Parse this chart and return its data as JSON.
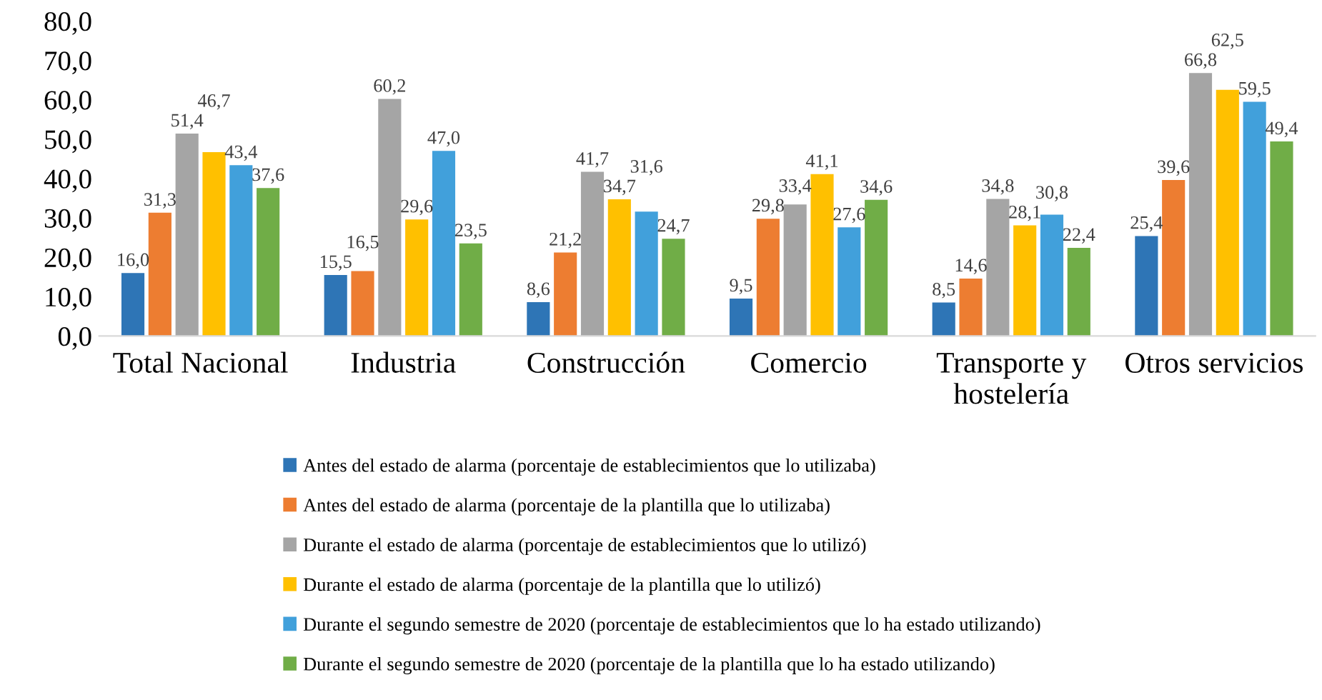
{
  "chart_data": {
    "type": "bar",
    "categories": [
      "Total Nacional",
      "Industria",
      "Construcción",
      "Comercio",
      "Transporte y\nhostelería",
      "Otros servicios"
    ],
    "series": [
      {
        "name": "Antes del estado de alarma (porcentaje de establecimientos que lo utilizaba)",
        "color": "#2e75b6",
        "values": [
          16.0,
          15.5,
          8.6,
          9.5,
          8.5,
          25.4
        ],
        "value_labels": [
          "16,0",
          "15,5",
          "8,6",
          "9,5",
          "8,5",
          "25,4"
        ]
      },
      {
        "name": "Antes del estado de alarma (porcentaje de la plantilla que lo utilizaba)",
        "color": "#ed7d31",
        "values": [
          31.3,
          16.5,
          21.2,
          29.8,
          14.6,
          39.6
        ],
        "value_labels": [
          "31,3",
          "16,5",
          "21,2",
          "29,8",
          "14,6",
          "39,6"
        ]
      },
      {
        "name": "Durante el estado de alarma (porcentaje de establecimientos que lo utilizó)",
        "color": "#a5a5a5",
        "values": [
          51.4,
          60.2,
          41.7,
          33.4,
          34.8,
          66.8
        ],
        "value_labels": [
          "51,4",
          "60,2",
          "41,7",
          "33,4",
          "34,8",
          "66,8"
        ]
      },
      {
        "name": "Durante el estado de alarma (porcentaje de la plantilla que lo utilizó)",
        "color": "#ffc000",
        "values": [
          46.7,
          29.6,
          34.7,
          41.1,
          28.1,
          62.5
        ],
        "value_labels": [
          "46,7",
          "29,6",
          "34,7",
          "41,1",
          "28,1",
          "62,5"
        ]
      },
      {
        "name": "Durante el segundo semestre de 2020 (porcentaje de establecimientos que lo ha estado utilizando)",
        "color": "#41a0db",
        "values": [
          43.4,
          47.0,
          31.6,
          27.6,
          30.8,
          59.5
        ],
        "value_labels": [
          "43,4",
          "47,0",
          "31,6",
          "27,6",
          "30,8",
          "59,5"
        ]
      },
      {
        "name": "Durante el segundo semestre de 2020 (porcentaje de la plantilla que lo ha estado utilizando)",
        "color": "#70ad47",
        "values": [
          37.6,
          23.5,
          24.7,
          34.6,
          22.4,
          49.4
        ],
        "value_labels": [
          "37,6",
          "23,5",
          "24,7",
          "34,6",
          "22,4",
          "49,4"
        ]
      }
    ],
    "ylim": [
      0,
      80
    ],
    "yticks": [
      {
        "value": 0,
        "label": "0,0"
      },
      {
        "value": 10,
        "label": "10,0"
      },
      {
        "value": 20,
        "label": "20,0"
      },
      {
        "value": 30,
        "label": "30,0"
      },
      {
        "value": 40,
        "label": "40,0"
      },
      {
        "value": 50,
        "label": "50,0"
      },
      {
        "value": 60,
        "label": "60,0"
      },
      {
        "value": 70,
        "label": "70,0"
      },
      {
        "value": 80,
        "label": "80,0"
      }
    ],
    "grid": false,
    "legend": "bottom"
  }
}
